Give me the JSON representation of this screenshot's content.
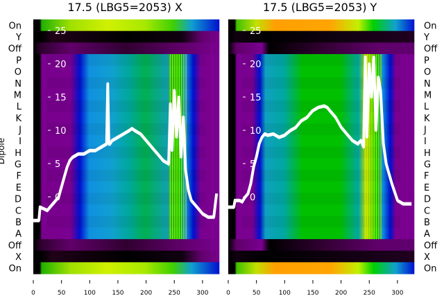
{
  "chart_data": [
    {
      "type": "heatmap",
      "title": "17.5 (LBG5=2053) X",
      "ylabel": "Dipole",
      "row_labels": [
        "On",
        "Y",
        "Off",
        "P",
        "O",
        "N",
        "M",
        "L",
        "K",
        "J",
        "I",
        "H",
        "G",
        "F",
        "E",
        "D",
        "C",
        "B",
        "A",
        "Off",
        "X",
        "On"
      ],
      "xticks": [
        0,
        50,
        100,
        150,
        200,
        250,
        300
      ],
      "xlim": [
        0,
        330
      ],
      "yticks": [
        0,
        5,
        10,
        15,
        20,
        25
      ],
      "ylim": [
        -8.5,
        27.5
      ],
      "line": {
        "color": "#ffffff",
        "x": [
          0,
          10,
          12,
          25,
          35,
          45,
          55,
          60,
          65,
          70,
          80,
          90,
          100,
          110,
          120,
          130,
          132,
          134,
          136,
          140,
          150,
          160,
          170,
          175,
          180,
          190,
          200,
          210,
          220,
          230,
          240,
          243,
          246,
          250,
          254,
          258,
          262,
          266,
          270,
          275,
          280,
          290,
          300,
          310,
          320,
          325
        ],
        "y": [
          -3.5,
          -3.5,
          -1.5,
          -2,
          -1,
          0,
          3,
          4.5,
          5.5,
          6,
          6.5,
          6.5,
          7,
          7,
          7.5,
          8,
          17,
          8,
          8,
          8.5,
          9,
          9.5,
          10,
          10.3,
          10,
          9.5,
          8.5,
          7.5,
          6.5,
          5.5,
          5,
          14,
          7,
          16,
          9,
          15,
          6,
          12,
          4,
          1,
          -0.5,
          -1.5,
          -2.5,
          -3,
          -3,
          0.5
        ]
      }
    },
    {
      "type": "heatmap",
      "title": "17.5 (LBG5=2053) Y",
      "row_labels": [
        "On",
        "Y",
        "Off",
        "P",
        "O",
        "N",
        "M",
        "L",
        "K",
        "J",
        "I",
        "H",
        "G",
        "F",
        "E",
        "D",
        "C",
        "B",
        "A",
        "Off",
        "X",
        "On"
      ],
      "xticks": [
        0,
        50,
        100,
        150,
        200,
        250,
        300
      ],
      "xlim": [
        0,
        330
      ],
      "yticks": [
        0,
        5,
        10,
        15,
        20,
        25
      ],
      "ylim": [
        -8.5,
        27.5
      ],
      "line": {
        "color": "#ffffff",
        "x": [
          0,
          10,
          12,
          20,
          25,
          30,
          35,
          40,
          45,
          50,
          55,
          60,
          65,
          70,
          80,
          90,
          100,
          110,
          120,
          130,
          140,
          150,
          160,
          170,
          175,
          180,
          190,
          200,
          210,
          220,
          230,
          235,
          240,
          243,
          246,
          250,
          254,
          258,
          262,
          266,
          270,
          275,
          280,
          290,
          300,
          310,
          320,
          325
        ],
        "y": [
          -1.5,
          -1.5,
          -0.5,
          -0.5,
          -0.7,
          0,
          0.5,
          2,
          4.5,
          6,
          8,
          9,
          9.5,
          9.3,
          9.5,
          9,
          9.3,
          10,
          10.5,
          11.5,
          12,
          13,
          13.5,
          13.7,
          13.5,
          13,
          12,
          10.5,
          9.5,
          8.5,
          8,
          8.5,
          7.5,
          21,
          9,
          20,
          15,
          21,
          10,
          18,
          16,
          8,
          5,
          2,
          -0.5,
          -1,
          -1,
          -1
        ]
      }
    }
  ]
}
